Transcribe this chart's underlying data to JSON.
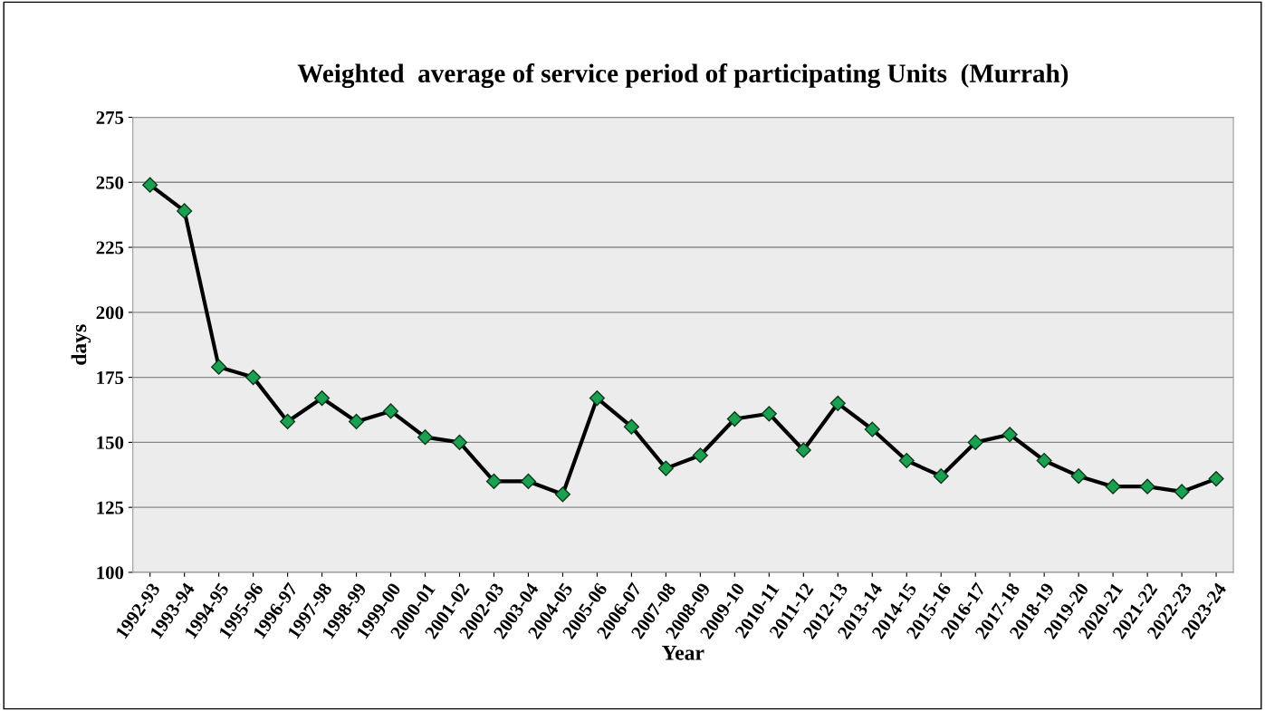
{
  "chart_data": {
    "type": "line",
    "title": "Weighted  average of service period of participating Units  (Murrah)",
    "xlabel": "Year",
    "ylabel": "days",
    "categories": [
      "1992-93",
      "1993-94",
      "1994-95",
      "1995-96",
      "1996-97",
      "1997-98",
      "1998-99",
      "1999-00",
      "2000-01",
      "2001-02",
      "2002-03",
      "2003-04",
      "2004-05",
      "2005-06",
      "2006-07",
      "2007-08",
      "2008-09",
      "2009-10",
      "2010-11",
      "2011-12",
      "2012-13",
      "2013-14",
      "2014-15",
      "2015-16",
      "2016-17",
      "2017-18",
      "2018-19",
      "2019-20",
      "2020-21",
      "2021-22",
      "2022-23",
      "2023-24"
    ],
    "series": [
      {
        "color": "#000000",
        "values": [
          249,
          239,
          179,
          175,
          158,
          167,
          158,
          162,
          152,
          150,
          135,
          135,
          130,
          167,
          156,
          140,
          145,
          159,
          161,
          147,
          165,
          155,
          143,
          137,
          150,
          153,
          143,
          137,
          133,
          133,
          131,
          136
        ]
      }
    ],
    "ylim": [
      100,
      275
    ],
    "yticks": [
      100,
      125,
      150,
      175,
      200,
      225,
      250,
      275
    ],
    "grid": "y",
    "marker": "diamond",
    "line_style": "solid",
    "legend": false
  }
}
